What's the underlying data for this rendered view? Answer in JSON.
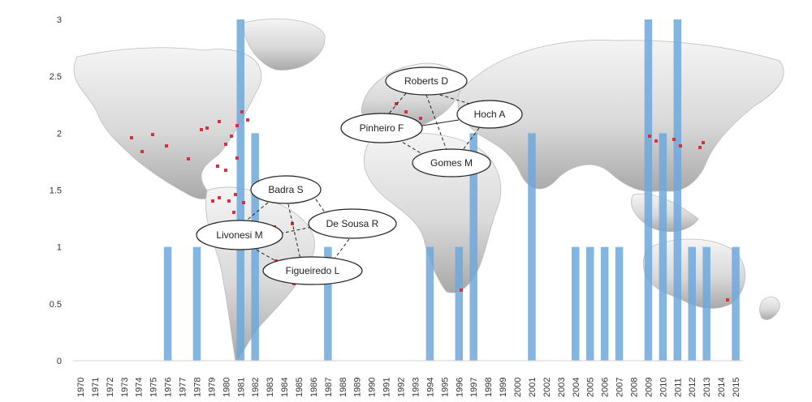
{
  "chart_data": {
    "type": "bar",
    "categories": [
      "1970",
      "1971",
      "1972",
      "1973",
      "1974",
      "1975",
      "1976",
      "1977",
      "1978",
      "1979",
      "1980",
      "1981",
      "1982",
      "1983",
      "1984",
      "1985",
      "1986",
      "1987",
      "1988",
      "1989",
      "1990",
      "1991",
      "1992",
      "1993",
      "1994",
      "1995",
      "1996",
      "1997",
      "1998",
      "1999",
      "2000",
      "2001",
      "2002",
      "2003",
      "2004",
      "2005",
      "2006",
      "2007",
      "2008",
      "2009",
      "2010",
      "2011",
      "2012",
      "2013",
      "2014",
      "2015"
    ],
    "values": [
      0,
      0,
      0,
      0,
      0,
      0,
      1,
      0,
      1,
      0,
      0,
      3,
      2,
      0,
      0,
      0,
      0,
      1,
      0,
      0,
      0,
      0,
      0,
      0,
      1,
      0,
      1,
      2,
      0,
      0,
      0,
      2,
      0,
      0,
      1,
      1,
      1,
      1,
      0,
      3,
      2,
      3,
      1,
      1,
      0,
      1
    ],
    "ylim": [
      0,
      3
    ],
    "yticks": [
      "0",
      "0.5",
      "1",
      "1.5",
      "2",
      "2.5",
      "3"
    ],
    "grid": false,
    "bar_color": "#6fa8dc",
    "background": "world map with red markers",
    "annotations": [
      "Roberts D",
      "Hoch A",
      "Pinheiro F",
      "Gomes M",
      "Badra S",
      "De Sousa R",
      "Livonesi M",
      "Figueiredo L"
    ]
  }
}
